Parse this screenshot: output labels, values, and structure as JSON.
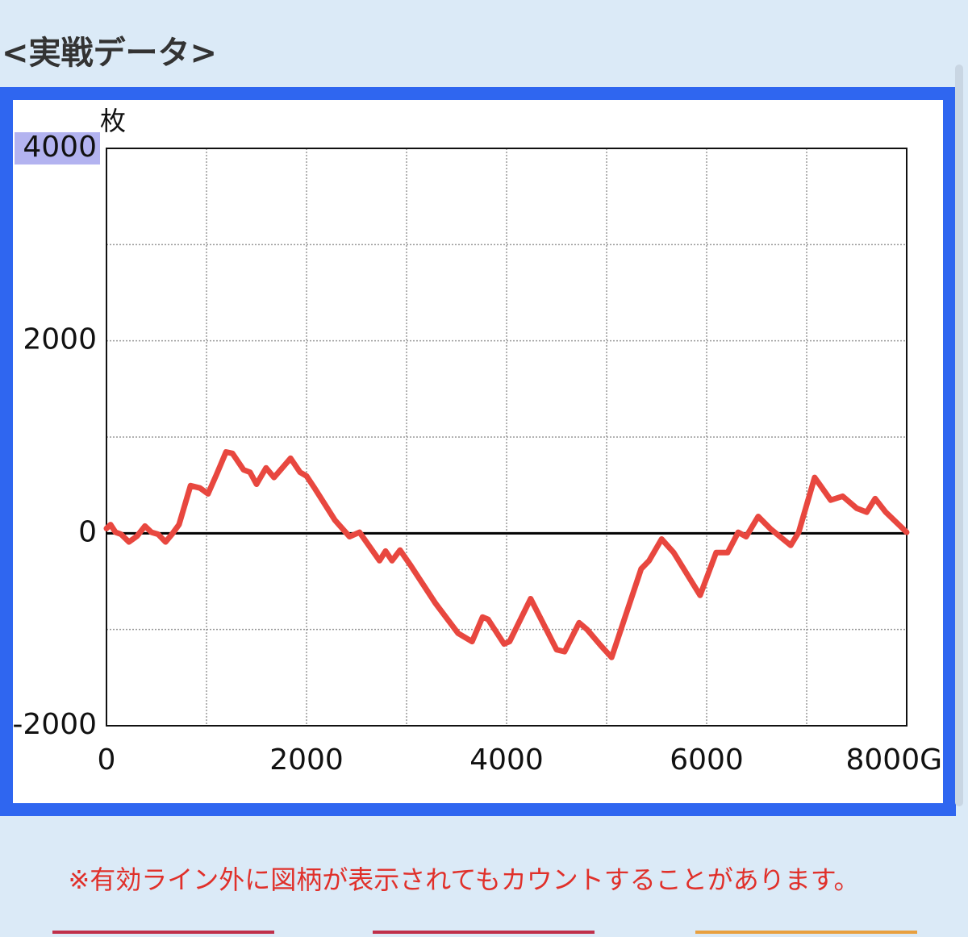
{
  "header": {
    "title": "<実戦データ>"
  },
  "chart_data": {
    "type": "line",
    "y_unit": "枚",
    "x": [
      0,
      40,
      90,
      145,
      225,
      305,
      385,
      450,
      515,
      590,
      655,
      725,
      840,
      935,
      1015,
      1100,
      1195,
      1260,
      1370,
      1435,
      1500,
      1595,
      1675,
      1840,
      1935,
      2000,
      2080,
      2285,
      2430,
      2530,
      2730,
      2790,
      2855,
      2935,
      3035,
      3290,
      3515,
      3655,
      3760,
      3815,
      3975,
      4030,
      4240,
      4500,
      4580,
      4725,
      4805,
      4940,
      5050,
      5345,
      5425,
      5550,
      5670,
      5935,
      6095,
      6210,
      6315,
      6395,
      6515,
      6635,
      6840,
      6920,
      7080,
      7240,
      7360,
      7500,
      7600,
      7685,
      7790,
      8000
    ],
    "series": [
      {
        "color": "#e8473f",
        "values": [
          50,
          90,
          10,
          -10,
          -90,
          -30,
          75,
          10,
          -10,
          -90,
          -10,
          90,
          495,
          470,
          410,
          610,
          845,
          830,
          660,
          635,
          510,
          680,
          580,
          780,
          635,
          595,
          470,
          135,
          -35,
          10,
          -285,
          -185,
          -285,
          -175,
          -325,
          -730,
          -1040,
          -1125,
          -870,
          -895,
          -1150,
          -1125,
          -680,
          -1210,
          -1230,
          -930,
          -1000,
          -1165,
          -1290,
          -370,
          -285,
          -60,
          -200,
          -645,
          -200,
          -200,
          10,
          -35,
          175,
          50,
          -125,
          10,
          580,
          345,
          385,
          260,
          220,
          360,
          220,
          10
        ]
      }
    ],
    "xlim": [
      0,
      8000
    ],
    "ylim": [
      -2000,
      4000
    ],
    "xticks": [
      0,
      2000,
      4000,
      6000,
      {
        "value": 8000,
        "label": "8000G"
      }
    ],
    "yticks": [
      -2000,
      0,
      2000,
      4000
    ],
    "xgrid": [
      1000,
      2000,
      3000,
      4000,
      5000,
      6000,
      7000
    ],
    "ygrid": [
      -1000,
      1000,
      2000,
      3000
    ],
    "grid": true
  },
  "note": "※有効ライン外に図柄が表示されてもカウントすることがあります。"
}
